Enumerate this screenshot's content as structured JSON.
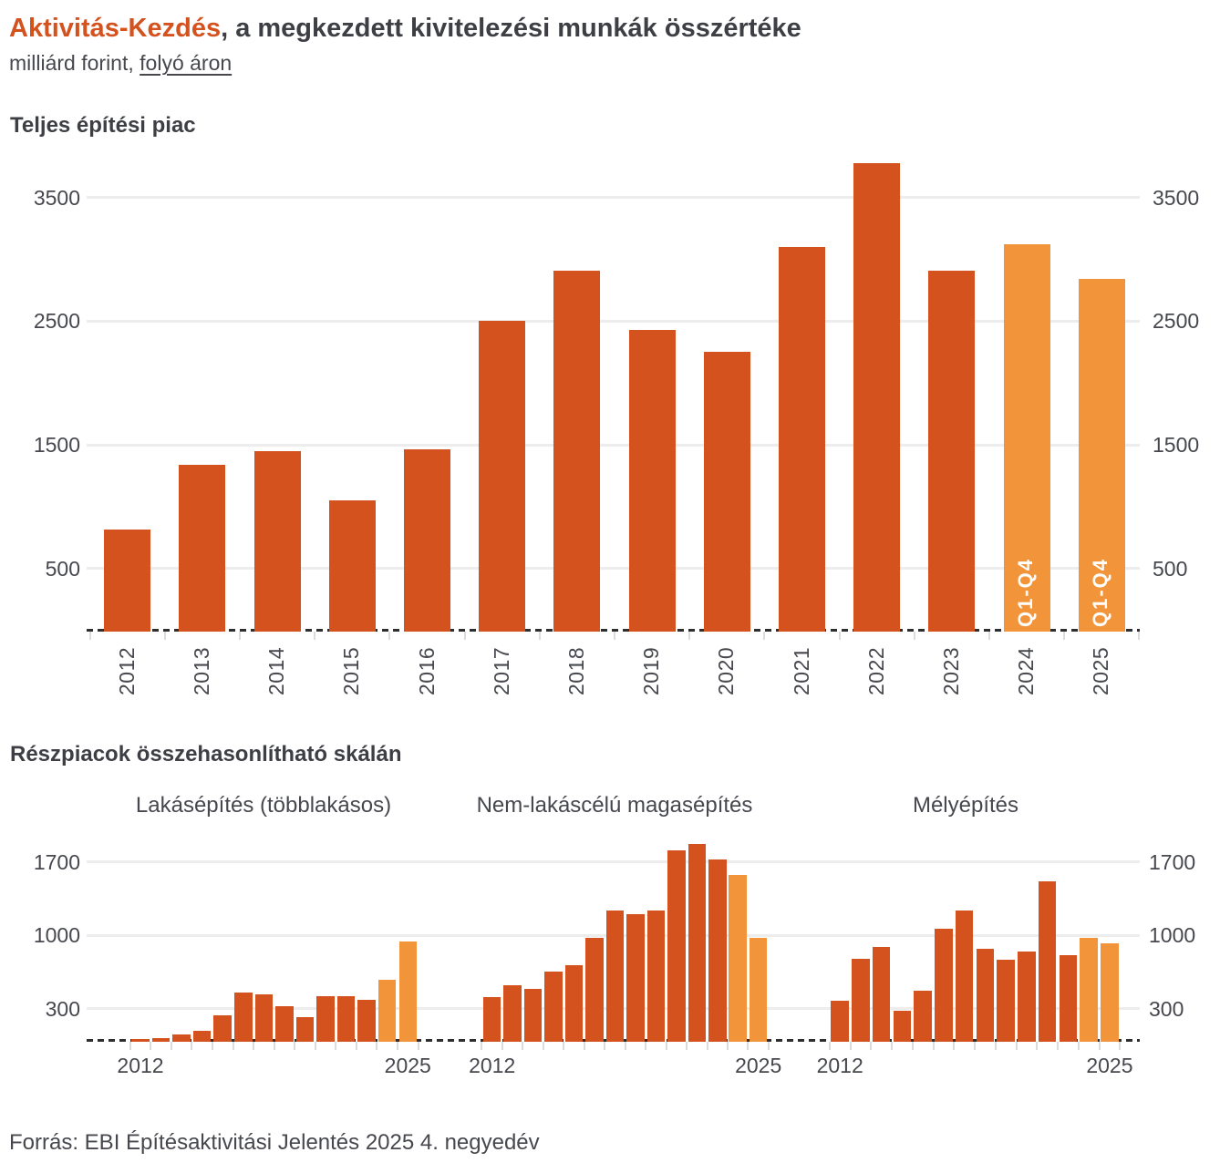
{
  "page": {
    "title_highlight": "Aktivitás-Kezdés",
    "title_rest": ", a megkezdett kivitelezési munkák összértéke",
    "subtitle_prefix": "milliárd forint, ",
    "subtitle_link": "folyó áron",
    "source": "Forrás: EBI Építésaktivitási Jelentés 2025 4. negyedév"
  },
  "sub_section": {
    "title": "Részpiacok összehasonlítható skálán"
  },
  "colors": {
    "bar_primary": "#d4521e",
    "bar_highlight": "#f2953a",
    "title_accent": "#d4521e",
    "text": "#46484e",
    "grid": "#ededed",
    "baseline": "#2e2e30",
    "axis_tick": "#dcdcdc",
    "bar_label": "#ffffff"
  },
  "chart_data": [
    {
      "id": "total",
      "type": "bar",
      "title": "Teljes építési piac",
      "categories": [
        "2012",
        "2013",
        "2014",
        "2015",
        "2016",
        "2017",
        "2018",
        "2019",
        "2020",
        "2021",
        "2022",
        "2023",
        "2024",
        "2025"
      ],
      "values": [
        815,
        1335,
        1450,
        1050,
        1460,
        2500,
        2910,
        2430,
        2250,
        3100,
        3775,
        2905,
        3125,
        2840
      ],
      "highlight_from_index": 12,
      "bar_labels": {
        "12": "Q1-Q4",
        "13": "Q1-Q4"
      },
      "yticks": [
        500,
        1500,
        2500,
        3500
      ],
      "ylim": [
        0,
        3845
      ],
      "y_axis_sides": [
        "left",
        "right"
      ],
      "x_labels": "all-rotated",
      "grid": true
    },
    {
      "id": "housing",
      "type": "bar",
      "title": "Lakásépítés (többlakásos)",
      "categories": [
        "2012",
        "2013",
        "2014",
        "2015",
        "2016",
        "2017",
        "2018",
        "2019",
        "2020",
        "2021",
        "2022",
        "2023",
        "2024",
        "2025"
      ],
      "values": [
        15,
        18,
        55,
        90,
        240,
        455,
        440,
        325,
        220,
        420,
        425,
        390,
        580,
        940
      ],
      "highlight_from_index": 12,
      "yticks": [
        300,
        1000,
        1700
      ],
      "ylim": [
        0,
        1920
      ],
      "xticks_shown": [
        "2012",
        "2025"
      ],
      "grid": true
    },
    {
      "id": "nonresidential",
      "type": "bar",
      "title": "Nem-lakáscélú magasépítés",
      "categories": [
        "2012",
        "2013",
        "2014",
        "2015",
        "2016",
        "2017",
        "2018",
        "2019",
        "2020",
        "2021",
        "2022",
        "2023",
        "2024",
        "2025"
      ],
      "values": [
        410,
        525,
        490,
        655,
        715,
        975,
        1235,
        1205,
        1235,
        1805,
        1870,
        1720,
        1575,
        975
      ],
      "highlight_from_index": 12,
      "yticks": [
        300,
        1000,
        1700
      ],
      "ylim": [
        0,
        1920
      ],
      "xticks_shown": [
        "2012",
        "2025"
      ],
      "grid": true
    },
    {
      "id": "civil",
      "type": "bar",
      "title": "Mélyépítés",
      "categories": [
        "2012",
        "2013",
        "2014",
        "2015",
        "2016",
        "2017",
        "2018",
        "2019",
        "2020",
        "2021",
        "2022",
        "2023",
        "2024",
        "2025"
      ],
      "values": [
        375,
        780,
        885,
        280,
        475,
        1065,
        1235,
        870,
        765,
        850,
        1510,
        815,
        975,
        925
      ],
      "highlight_from_index": 12,
      "yticks": [
        300,
        1000,
        1700
      ],
      "ylim": [
        0,
        1920
      ],
      "xticks_shown": [
        "2012",
        "2025"
      ],
      "grid": true
    }
  ]
}
